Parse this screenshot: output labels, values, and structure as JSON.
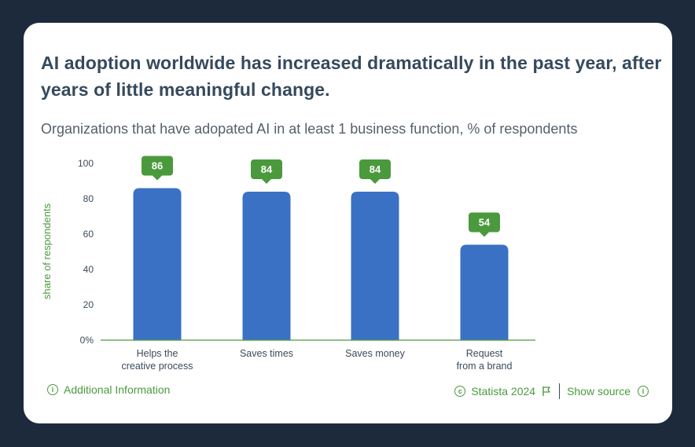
{
  "title": "AI adoption worldwide has increased dramatically in the past year, after years of little meaningful change.",
  "subtitle": "Organizations that have adopated AI in at least 1 business function, % of respondents",
  "footer": {
    "additional_info": "Additional Information",
    "copyright": "Statista 2024",
    "show_source": "Show source"
  },
  "colors": {
    "bar": "#3a71c4",
    "label_bg": "#4a9a3d",
    "axis_label": "#4a9a3d",
    "title": "#36495d",
    "background": "#1c2a3c"
  },
  "chart_data": {
    "type": "bar",
    "categories": [
      [
        "Helps the",
        "creative process"
      ],
      [
        "Saves times"
      ],
      [
        "Saves money"
      ],
      [
        "Request",
        "from a brand"
      ]
    ],
    "values": [
      86,
      84,
      84,
      54
    ],
    "ylabel": "share of respondents",
    "ylim": [
      0,
      100
    ],
    "yticks": [
      "0%",
      "20",
      "40",
      "60",
      "80",
      "100"
    ],
    "data_labels": [
      "86",
      "84",
      "84",
      "54"
    ],
    "grid": false,
    "legend": "none"
  }
}
